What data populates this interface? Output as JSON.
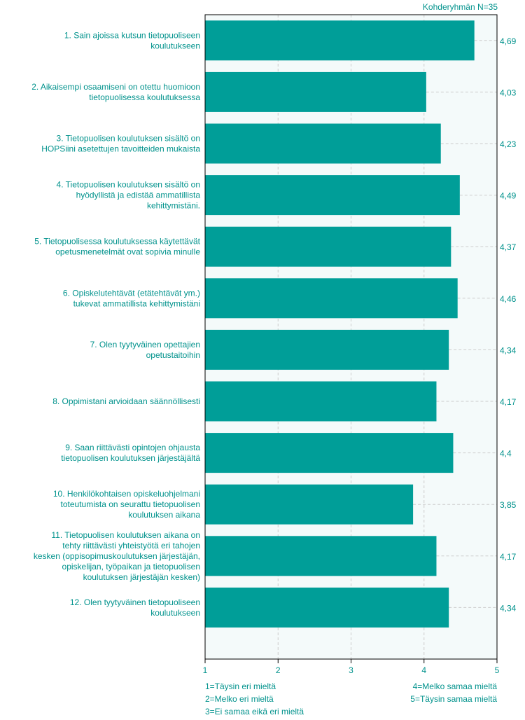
{
  "header": {
    "group_size_label": "Kohderyhmän N=35"
  },
  "chart_data": {
    "type": "bar",
    "orientation": "horizontal",
    "title": "",
    "xlabel": "",
    "ylabel": "",
    "xlim": [
      1,
      5
    ],
    "x_ticks": [
      "1",
      "2",
      "3",
      "4",
      "5"
    ],
    "grid": true,
    "colors": {
      "bar": "#009e98",
      "text": "#00928c",
      "plot_background": "#f4fafa",
      "grid": "#cccccc",
      "frame": "#000000"
    },
    "categories": [
      [
        "1. Sain ajoissa kutsun tietopuoliseen",
        "koulutukseen"
      ],
      [
        "2. Aikaisempi osaamiseni on otettu huomioon",
        "tietopuolisessa koulutuksessa"
      ],
      [
        "3. Tietopuolisen koulutuksen sisältö on",
        "HOPSiini asetettujen tavoitteiden mukaista"
      ],
      [
        "4. Tietopuolisen koulutuksen sisältö on",
        "hyödyllistä ja edistää ammatillista",
        "kehittymistäni."
      ],
      [
        "5. Tietopuolisessa koulutuksessa käytettävät",
        "opetusmenetelmät ovat sopivia minulle"
      ],
      [
        "6. Opiskelutehtävät (etätehtävät ym.)",
        "tukevat ammatillista kehittymistäni"
      ],
      [
        "7. Olen tyytyväinen opettajien",
        "opetustaitoihin"
      ],
      [
        "8. Oppimistani arvioidaan säännöllisesti"
      ],
      [
        "9. Saan riittävästi opintojen ohjausta",
        "tietopuolisen koulutuksen järjestäjältä"
      ],
      [
        "10. Henkilökohtaisen opiskeluohjelmani",
        "toteutumista on seurattu tietopuolisen",
        "koulutuksen aikana"
      ],
      [
        "11. Tietopuolisen koulutuksen aikana on",
        "tehty riittävästi yhteistyötä eri tahojen",
        "kesken (oppisopimuskoulutuksen järjestäjän,",
        "opiskelijan, työpaikan ja tietopuolisen",
        "koulutuksen järjestäjän kesken)"
      ],
      [
        "12. Olen tyytyväinen tietopuoliseen",
        "koulutukseen"
      ]
    ],
    "values": [
      4.69,
      4.03,
      4.23,
      4.49,
      4.37,
      4.46,
      4.34,
      4.17,
      4.4,
      3.85,
      4.17,
      4.34
    ],
    "value_labels": [
      "4,69",
      "4,03",
      "4,23",
      "4,49",
      "4,37",
      "4,46",
      "4,34",
      "4,17",
      "4,4",
      "3,85",
      "4,17",
      "4,34"
    ],
    "legend": {
      "left": [
        "1=Täysin eri mieltä",
        "2=Melko eri mieltä",
        "3=Ei samaa eikä eri mieltä"
      ],
      "right": [
        "4=Melko samaa mieltä",
        "5=Täysin samaa mieltä"
      ]
    }
  }
}
